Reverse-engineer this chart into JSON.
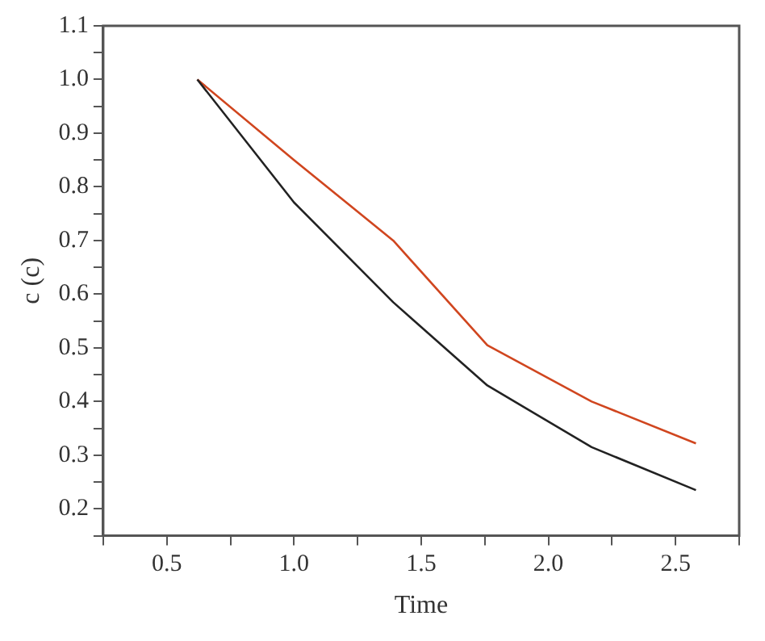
{
  "chart_data": {
    "type": "line",
    "xlabel": "Time",
    "ylabel": "c (c)",
    "x": [
      0.62,
      1.0,
      1.39,
      1.76,
      2.17,
      2.58
    ],
    "series": [
      {
        "color": "#222222",
        "values": [
          1.0,
          0.771,
          0.585,
          0.43,
          0.315,
          0.235
        ]
      },
      {
        "color": "#d0461f",
        "values": [
          1.0,
          0.85,
          0.7,
          0.505,
          0.4,
          0.322
        ]
      }
    ],
    "xlim": [
      0.25,
      2.75
    ],
    "xticks": [
      {
        "value": 0.25,
        "label": null
      },
      0.5,
      {
        "value": 0.75,
        "label": null
      },
      {
        "value": 1.0,
        "label": "1.0"
      },
      {
        "value": 1.25,
        "label": null
      },
      1.5,
      {
        "value": 1.75,
        "label": null
      },
      {
        "value": 2.0,
        "label": "2.0"
      },
      {
        "value": 2.25,
        "label": null
      },
      2.5,
      {
        "value": 2.75,
        "label": null
      }
    ],
    "ylim": [
      0.15,
      1.1
    ],
    "yticks": [
      {
        "value": 0.15,
        "label": null
      },
      0.2,
      {
        "value": 0.25,
        "label": null
      },
      0.3,
      {
        "value": 0.35,
        "label": null
      },
      0.4,
      {
        "value": 0.45,
        "label": null
      },
      0.5,
      {
        "value": 0.55,
        "label": null
      },
      0.6,
      {
        "value": 0.65,
        "label": null
      },
      0.7,
      {
        "value": 0.75,
        "label": null
      },
      0.8,
      {
        "value": 0.85,
        "label": null
      },
      0.9,
      {
        "value": 0.95,
        "label": null
      },
      {
        "value": 1.0,
        "label": "1.0"
      },
      {
        "value": 1.05,
        "label": null
      },
      1.1
    ],
    "grid": false,
    "legend": false,
    "marker": "none",
    "line_style": "solid"
  }
}
